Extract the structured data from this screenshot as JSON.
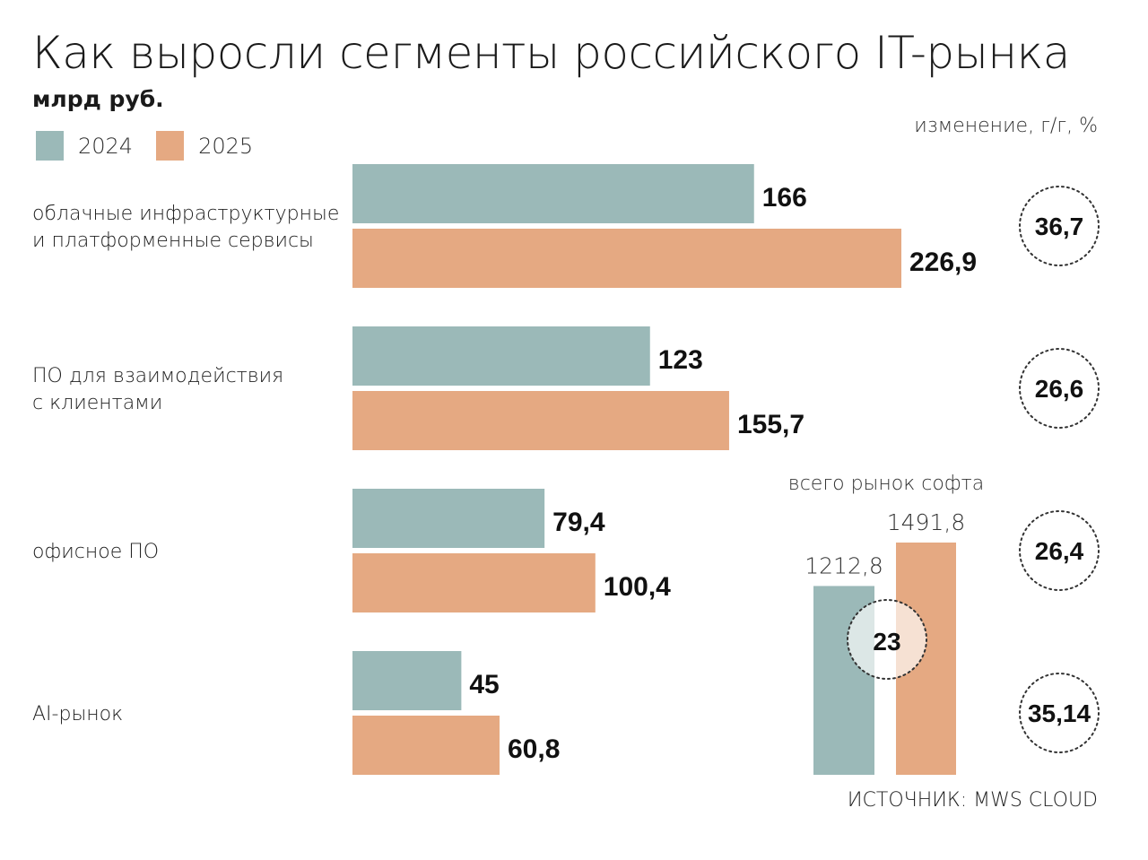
{
  "title": "Как выросли сегменты российского IT-рынка",
  "subtitle": "млрд руб.",
  "legend": [
    {
      "label": "2024",
      "color": "#9bb9b8"
    },
    {
      "label": "2025",
      "color": "#e5a982"
    }
  ],
  "change_header": "изменение, г/г, %",
  "source": "ИСТОЧНИК: MWS CLOUD",
  "chart_data": {
    "type": "bar",
    "orientation": "horizontal",
    "categories": [
      [
        "облачные инфраструктурные",
        "и платформенные сервисы"
      ],
      [
        "ПО для взаимодействия",
        "с клиентами"
      ],
      [
        "офисное ПО"
      ],
      [
        "AI-рынок"
      ]
    ],
    "series": [
      {
        "name": "2024",
        "color": "#9bb9b8",
        "values": [
          166,
          123,
          79.4,
          45
        ],
        "labels": [
          "166",
          "123",
          "79,4",
          "45"
        ]
      },
      {
        "name": "2025",
        "color": "#e5a982",
        "values": [
          226.9,
          155.7,
          100.4,
          60.8
        ],
        "labels": [
          "226,9",
          "155,7",
          "100,4",
          "60,8"
        ]
      }
    ],
    "change_yoy": [
      "36,7",
      "26,6",
      "26,4",
      "35,14"
    ],
    "total": {
      "title": "всего рынок софта",
      "values": [
        1212.8,
        1491.8
      ],
      "labels": [
        "1212,8",
        "1491,8"
      ],
      "change": "23",
      "ylim": [
        0,
        1491.8
      ]
    },
    "xlim": [
      0,
      226.9
    ],
    "grid": false,
    "legend_position": "top-left"
  }
}
